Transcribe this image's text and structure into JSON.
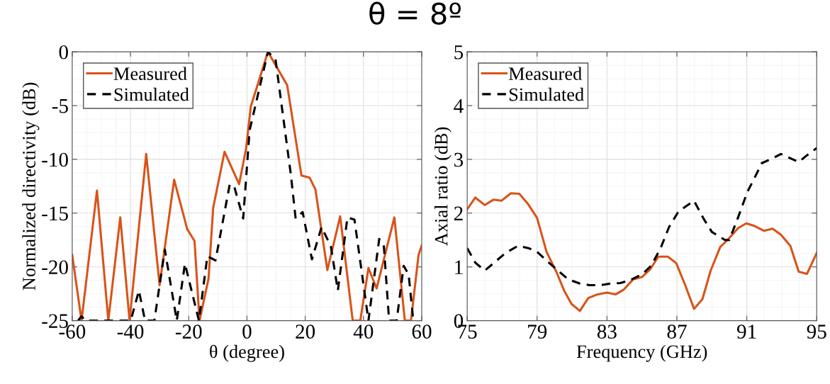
{
  "chart_data": [
    {
      "type": "line",
      "title": "θ = 8º",
      "xlabel": "θ (degree)",
      "ylabel": "Normalized directivity (dB)",
      "xlim": [
        -60,
        60
      ],
      "ylim": [
        -25,
        0
      ],
      "xticks": [
        -60,
        -40,
        -20,
        0,
        20,
        40,
        60
      ],
      "yticks": [
        -25,
        -20,
        -15,
        -10,
        -5,
        0
      ],
      "grid": true,
      "legend": "top left",
      "series": [
        {
          "name": "Measured",
          "color": "#d95319",
          "line_style": "solid",
          "x": [
            -60,
            -56.8,
            -51.5,
            -47.6,
            -43.5,
            -40.3,
            -34.6,
            -30,
            -25,
            -20.5,
            -18,
            -16.3,
            -13.2,
            -11.6,
            -7.7,
            -2.7,
            -0.3,
            1.3,
            7.2,
            13.8,
            18.7,
            21.5,
            23.5,
            27.6,
            32,
            36.3,
            38.9,
            41.7,
            44.5,
            50.6,
            54.2,
            56.3,
            58.9,
            60
          ],
          "values": [
            -18.9,
            -25,
            -12.9,
            -25,
            -15.4,
            -25,
            -9.5,
            -21.7,
            -11.9,
            -16.5,
            -17.6,
            -25,
            -21.1,
            -14.5,
            -9.3,
            -12.3,
            -9.0,
            -5.1,
            0,
            -3.1,
            -11.5,
            -11.7,
            -12.8,
            -20.3,
            -15.3,
            -25,
            -25,
            -20.1,
            -22.0,
            -15.4,
            -25,
            -25,
            -18.9,
            -18.0
          ]
        },
        {
          "name": "Simulated",
          "color": "#000000",
          "line_style": "dashed",
          "x": [
            -58,
            -56.8,
            -55.5,
            -39.9,
            -37.1,
            -35,
            -31.8,
            -28.2,
            -24.1,
            -21.3,
            -16.5,
            -13.6,
            -10.8,
            -5.9,
            -4.3,
            -1.3,
            0.9,
            7.2,
            9.8,
            15.1,
            16.7,
            19.1,
            22.3,
            25.6,
            28.8,
            31.2,
            34.5,
            36.9,
            41.7,
            45.4,
            47,
            48.8,
            51.4,
            53.8,
            55.5,
            57.1
          ],
          "values": [
            -25,
            -24.6,
            -25,
            -25,
            -22.2,
            -25,
            -25,
            -18.4,
            -25,
            -19.7,
            -25,
            -19.0,
            -19.4,
            -12.3,
            -12.6,
            -15.5,
            -7.3,
            0,
            -0.7,
            -11.5,
            -15.5,
            -14.9,
            -19.3,
            -16.3,
            -18.1,
            -22.2,
            -15.4,
            -15.6,
            -25,
            -17.4,
            -18.1,
            -25,
            -25,
            -19.9,
            -20.7,
            -25
          ]
        }
      ]
    },
    {
      "type": "line",
      "xlabel": "Frequency (GHz)",
      "ylabel": "Axial ratio (dB)",
      "xlim": [
        75,
        95
      ],
      "ylim": [
        0,
        5
      ],
      "xticks": [
        75,
        79,
        83,
        87,
        91,
        95
      ],
      "yticks": [
        0,
        1,
        2,
        3,
        4,
        5
      ],
      "grid": true,
      "legend": "top left",
      "series": [
        {
          "name": "Measured",
          "color": "#d95319",
          "line_style": "solid",
          "x": [
            75,
            75.46,
            76.0,
            76.5,
            76.96,
            77.5,
            77.98,
            78.46,
            79.0,
            79.54,
            80.1,
            80.56,
            80.97,
            81.45,
            81.93,
            82.47,
            83.0,
            83.5,
            83.97,
            84.5,
            85.0,
            85.46,
            85.94,
            86.48,
            86.96,
            87.5,
            87.98,
            88.46,
            88.93,
            89.48,
            89.95,
            90.5,
            90.97,
            91.45,
            91.99,
            92.47,
            92.95,
            93.49,
            93.97,
            94.44,
            95.0
          ],
          "values": [
            2.07,
            2.29,
            2.15,
            2.25,
            2.23,
            2.37,
            2.36,
            2.18,
            1.91,
            1.28,
            0.91,
            0.55,
            0.31,
            0.18,
            0.42,
            0.49,
            0.52,
            0.49,
            0.58,
            0.77,
            0.81,
            0.95,
            1.19,
            1.19,
            1.07,
            0.64,
            0.22,
            0.4,
            0.93,
            1.37,
            1.52,
            1.72,
            1.81,
            1.76,
            1.67,
            1.71,
            1.6,
            1.39,
            0.91,
            0.87,
            1.26
          ]
        },
        {
          "name": "Simulated",
          "color": "#000000",
          "line_style": "dashed",
          "x": [
            75,
            75.46,
            76.0,
            76.55,
            77.2,
            77.9,
            78.5,
            79.0,
            79.6,
            80.2,
            80.77,
            81.45,
            81.99,
            82.67,
            83.2,
            83.76,
            84.3,
            85.0,
            85.53,
            86.07,
            86.55,
            87.09,
            87.98,
            88.52,
            89.0,
            89.75,
            90.0,
            90.5,
            91.04,
            91.45,
            91.86,
            92.47,
            92.95,
            93.49,
            93.97,
            94.38,
            95.0
          ],
          "values": [
            1.35,
            1.08,
            0.93,
            1.08,
            1.26,
            1.39,
            1.35,
            1.28,
            1.1,
            0.93,
            0.77,
            0.69,
            0.66,
            0.66,
            0.69,
            0.7,
            0.75,
            0.86,
            1.02,
            1.35,
            1.74,
            2.03,
            2.23,
            1.9,
            1.65,
            1.5,
            1.5,
            1.92,
            2.4,
            2.66,
            2.93,
            3.02,
            3.1,
            3.02,
            2.95,
            3.06,
            3.21
          ]
        }
      ]
    }
  ]
}
